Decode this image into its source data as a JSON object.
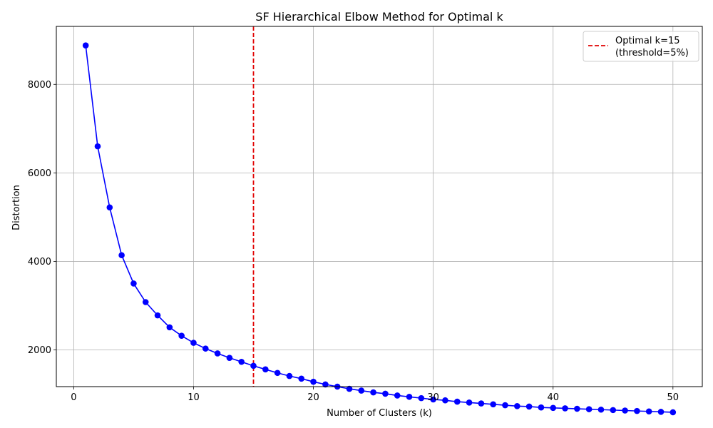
{
  "chart_data": {
    "type": "line",
    "title": "SF Hierarchical Elbow Method for Optimal k",
    "xlabel": "Number of Clusters (k)",
    "ylabel": "Distortion",
    "xlim": [
      -1.45,
      52.45
    ],
    "ylim": [
      1170,
      9310
    ],
    "xticks": [
      0,
      10,
      20,
      30,
      40,
      50
    ],
    "xtick_labels": [
      "0",
      "10",
      "20",
      "30",
      "40",
      "50"
    ],
    "yticks": [
      2000,
      4000,
      6000,
      8000
    ],
    "ytick_labels": [
      "2000",
      "4000",
      "6000",
      "8000"
    ],
    "grid": true,
    "legend_position": "top-right",
    "series": [
      {
        "color": "#0000ff",
        "marker": "circle",
        "x": [
          1,
          2,
          3,
          4,
          5,
          6,
          7,
          8,
          9,
          10,
          11,
          12,
          13,
          14,
          15,
          16,
          17,
          18,
          19,
          20,
          21,
          22,
          23,
          24,
          25,
          26,
          27,
          28,
          29,
          30,
          31,
          32,
          33,
          34,
          35,
          36,
          37,
          38,
          39,
          40,
          41,
          42,
          43,
          44,
          45,
          46,
          47,
          48,
          49,
          50
        ],
        "y": [
          8880,
          6600,
          5220,
          4140,
          3500,
          3080,
          2780,
          2510,
          2320,
          2160,
          2030,
          1920,
          1820,
          1730,
          1640,
          1560,
          1480,
          1410,
          1350,
          1280,
          1220,
          1170,
          1120,
          1080,
          1040,
          1010,
          970,
          940,
          910,
          880,
          860,
          830,
          810,
          790,
          770,
          750,
          730,
          720,
          700,
          690,
          680,
          670,
          660,
          650,
          640,
          630,
          620,
          610,
          600,
          590
        ]
      }
    ],
    "reference_line": {
      "orientation": "vertical",
      "x": 15,
      "color": "#e00000",
      "style": "dashed",
      "legend_line1": "Optimal k=15",
      "legend_line2": "(threshold=5%)"
    }
  }
}
